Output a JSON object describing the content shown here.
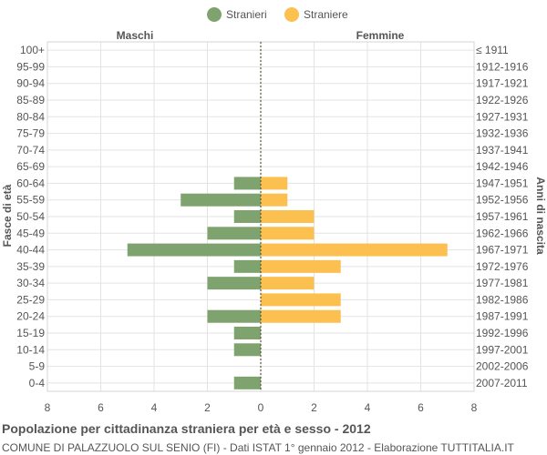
{
  "chart_data": {
    "type": "bar",
    "orientation": "horizontal",
    "title": "Popolazione per cittadinanza straniera per età e sesso - 2012",
    "subtitle": "COMUNE DI PALAZZUOLO SUL SENIO (FI) - Dati ISTAT 1° gennaio 2012 - Elaborazione TUTTITALIA.IT",
    "left_header": "Maschi",
    "right_header": "Femmine",
    "ylabel_left": "Fasce di età",
    "ylabel_right": "Anni di nascita",
    "categories": [
      "100+",
      "95-99",
      "90-94",
      "85-89",
      "80-84",
      "75-79",
      "70-74",
      "65-69",
      "60-64",
      "55-59",
      "50-54",
      "45-49",
      "40-44",
      "35-39",
      "30-34",
      "25-29",
      "20-24",
      "15-19",
      "10-14",
      "5-9",
      "0-4"
    ],
    "birth_years": [
      "≤ 1911",
      "1912-1916",
      "1917-1921",
      "1922-1926",
      "1927-1931",
      "1932-1936",
      "1937-1941",
      "1942-1946",
      "1947-1951",
      "1952-1956",
      "1957-1961",
      "1962-1966",
      "1967-1971",
      "1972-1976",
      "1977-1981",
      "1982-1986",
      "1987-1991",
      "1992-1996",
      "1997-2001",
      "2002-2006",
      "2007-2011"
    ],
    "series": [
      {
        "name": "Stranieri",
        "side": "left",
        "color": "#7fa36f",
        "values": [
          0,
          0,
          0,
          0,
          0,
          0,
          0,
          0,
          1,
          3,
          1,
          2,
          5,
          1,
          2,
          0,
          2,
          1,
          1,
          0,
          1
        ]
      },
      {
        "name": "Straniere",
        "side": "right",
        "color": "#fbc04f",
        "values": [
          0,
          0,
          0,
          0,
          0,
          0,
          0,
          0,
          1,
          1,
          2,
          2,
          7,
          3,
          2,
          3,
          3,
          0,
          0,
          0,
          0
        ]
      }
    ],
    "xlim": [
      -8,
      8
    ],
    "xticks": [
      -8,
      -6,
      -4,
      -2,
      0,
      2,
      4,
      6,
      8
    ],
    "xtick_labels": [
      "8",
      "6",
      "4",
      "2",
      "0",
      "2",
      "4",
      "6",
      "8"
    ],
    "grid": true,
    "legend_position": "top-center"
  }
}
